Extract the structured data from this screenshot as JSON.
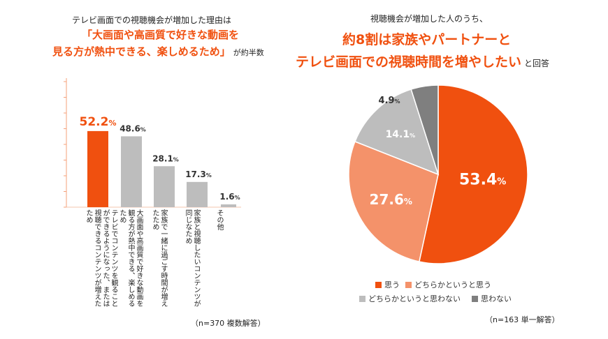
{
  "chart_data": [
    {
      "type": "bar",
      "title_line1": "テレビ画面での視聴機会が増加した理由は",
      "title_highlight1": "「大画面や高画質で好きな動画を",
      "title_highlight2": "見る方が熱中できる、楽しめるため」",
      "title_suffix": "が約半数",
      "categories": [
        "テレビでコンテンツを観ることができるようになった、または視聴できるコンテンツが増えたため",
        "大画面や高画質で好きな動画を観る方が熱中できる、楽しめるため",
        "家族で一緒に過ごす時間が増えたため",
        "家族と視聴したいコンテンツが同じなため",
        "その他"
      ],
      "values": [
        52.2,
        48.6,
        28.1,
        17.3,
        1.6
      ],
      "value_labels": [
        "52.2",
        "48.6",
        "28.1",
        "17.3",
        "1.6"
      ],
      "unit": "%",
      "colors": [
        "#F0500F",
        "#BDBDBD",
        "#BDBDBD",
        "#BDBDBD",
        "#BDBDBD"
      ],
      "ylim": [
        0,
        85
      ],
      "note": "（n=370  複数解答）"
    },
    {
      "type": "pie",
      "title_line1": "視聴機会が増加した人のうち、",
      "title_highlight1": "約8割は家族やパートナーと",
      "title_highlight2": "テレビ画面での視聴時間を増やしたい",
      "title_suffix": "と回答",
      "labels": [
        "思う",
        "どちらかというと思う",
        "どちらかというと思わない",
        "思わない"
      ],
      "values": [
        53.4,
        27.6,
        14.1,
        4.9
      ],
      "value_labels": [
        "53.4",
        "27.6",
        "14.1",
        "4.9"
      ],
      "unit": "%",
      "colors": [
        "#F0500F",
        "#F4926A",
        "#BDBDBD",
        "#7F7F7F"
      ],
      "legend": "bottom",
      "note": "（n=163  単一解答）"
    }
  ]
}
